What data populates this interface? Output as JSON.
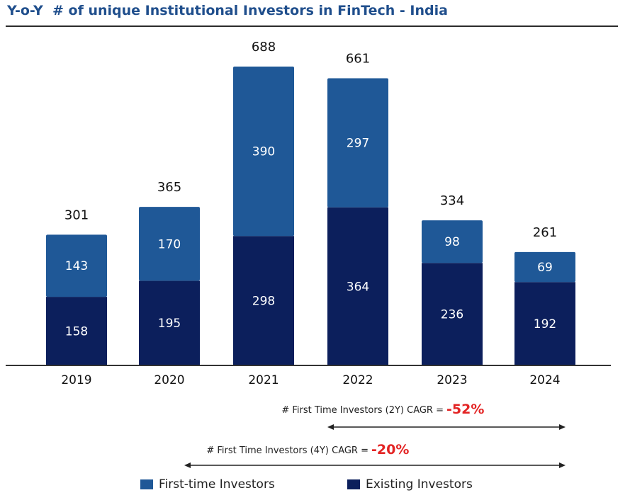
{
  "title": "Y-o-Y  # of unique Institutional Investors in FinTech - India",
  "colors": {
    "first_time": "#1f5897",
    "existing": "#0c1f5c",
    "cagr": "#e32424",
    "title": "#1f4e8c"
  },
  "chart_data": {
    "type": "bar",
    "stacked": true,
    "categories": [
      "2019",
      "2020",
      "2021",
      "2022",
      "2023",
      "2024"
    ],
    "series": [
      {
        "name": "Existing Investors",
        "values": [
          158,
          195,
          298,
          364,
          236,
          192
        ]
      },
      {
        "name": "First-time Investors",
        "values": [
          143,
          170,
          390,
          297,
          98,
          69
        ]
      }
    ],
    "totals": [
      301,
      365,
      688,
      661,
      334,
      261
    ],
    "ylim": [
      0,
      688
    ],
    "legend_position": "bottom",
    "grid": false
  },
  "cagr": [
    {
      "label": "# First Time Investors (2Y) CAGR = ",
      "value": "-52%",
      "from": "2022",
      "to": "2024"
    },
    {
      "label": "# First Time Investors (4Y) CAGR = ",
      "value": "-20%",
      "from": "2020",
      "to": "2024"
    }
  ],
  "legend": [
    {
      "label": "First-time Investors",
      "color_key": "first_time"
    },
    {
      "label": "Existing Investors",
      "color_key": "existing"
    }
  ]
}
